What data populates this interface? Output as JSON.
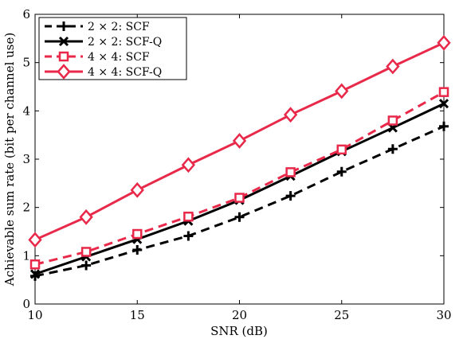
{
  "chart_data": {
    "type": "line",
    "title": "",
    "xlabel": "SNR (dB)",
    "ylabel": "Achievable sum rate (bit per channel use)",
    "xlim": [
      10,
      30
    ],
    "ylim": [
      0,
      6
    ],
    "xticks": [
      10,
      15,
      20,
      25,
      30
    ],
    "yticks": [
      0,
      1,
      2,
      3,
      4,
      5,
      6
    ],
    "grid": false,
    "legend_position": "top-left",
    "x": [
      10,
      12.5,
      15,
      17.5,
      20,
      22.5,
      25,
      27.5,
      30
    ],
    "series": [
      {
        "name": "2 × 2: SCF",
        "values": [
          0.58,
          0.8,
          1.12,
          1.41,
          1.8,
          2.24,
          2.74,
          3.21,
          3.68
        ],
        "color": "#000000",
        "line": "dashed",
        "marker": "plus"
      },
      {
        "name": "2 × 2: SCF-Q",
        "values": [
          0.62,
          0.98,
          1.34,
          1.72,
          2.15,
          2.65,
          3.16,
          3.65,
          4.15
        ],
        "color": "#000000",
        "line": "solid",
        "marker": "x"
      },
      {
        "name": "4 × 4: SCF",
        "values": [
          0.82,
          1.08,
          1.45,
          1.81,
          2.2,
          2.73,
          3.2,
          3.8,
          4.39
        ],
        "color": "#e8294a",
        "line": "dashed",
        "marker": "square"
      },
      {
        "name": "4 × 4: SCF-Q",
        "values": [
          1.33,
          1.8,
          2.36,
          2.88,
          3.38,
          3.92,
          4.41,
          4.92,
          5.41
        ],
        "color": "#e8294a",
        "line": "solid",
        "marker": "diamond"
      }
    ]
  }
}
